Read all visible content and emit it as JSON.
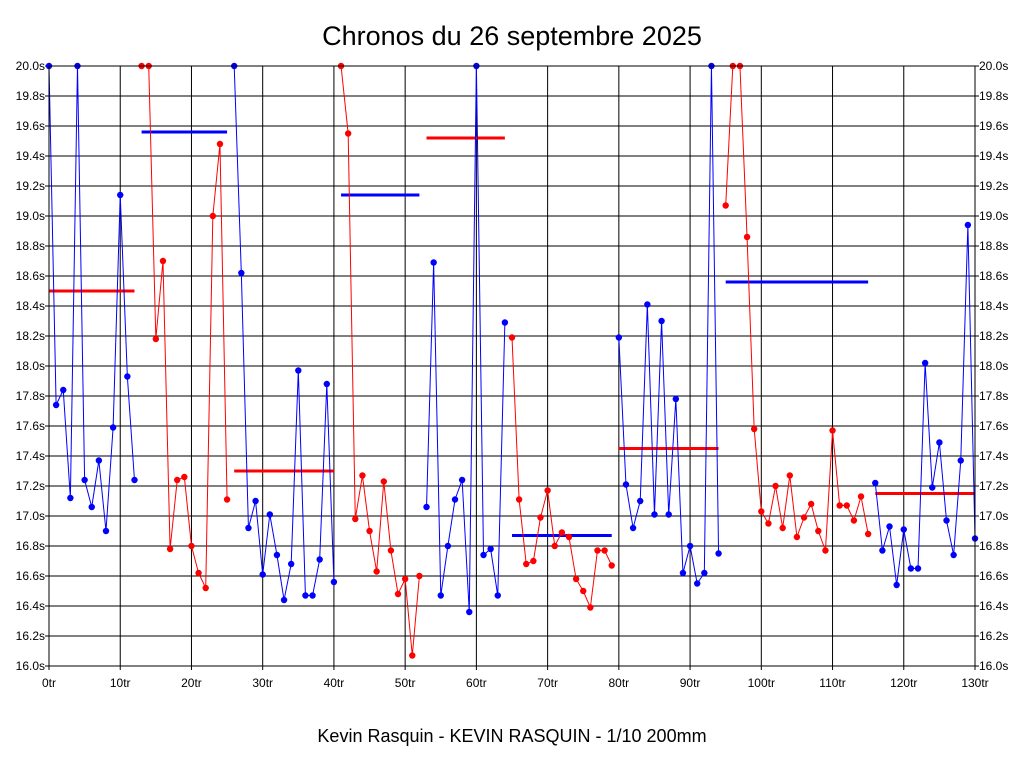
{
  "chart_data": {
    "type": "line",
    "title": "Chronos du 26 septembre 2025",
    "subtitle": "Kevin Rasquin - KEVIN RASQUIN - 1/10 200mm",
    "xlabel": "",
    "ylabel": "",
    "xlim": [
      0,
      130
    ],
    "ylim": [
      16.0,
      20.0
    ],
    "grid": true,
    "x_ticks": [
      {
        "value": 0,
        "label": "0tr"
      },
      {
        "value": 10,
        "label": "10tr"
      },
      {
        "value": 20,
        "label": "20tr"
      },
      {
        "value": 30,
        "label": "30tr"
      },
      {
        "value": 40,
        "label": "40tr"
      },
      {
        "value": 50,
        "label": "50tr"
      },
      {
        "value": 60,
        "label": "60tr"
      },
      {
        "value": 70,
        "label": "70tr"
      },
      {
        "value": 80,
        "label": "80tr"
      },
      {
        "value": 90,
        "label": "90tr"
      },
      {
        "value": 100,
        "label": "100tr"
      },
      {
        "value": 110,
        "label": "110tr"
      },
      {
        "value": 120,
        "label": "120tr"
      },
      {
        "value": 130,
        "label": "130tr"
      }
    ],
    "y_ticks": [
      {
        "value": 16.0,
        "label": "16.0s"
      },
      {
        "value": 16.2,
        "label": "16.2s"
      },
      {
        "value": 16.4,
        "label": "16.4s"
      },
      {
        "value": 16.6,
        "label": "16.6s"
      },
      {
        "value": 16.8,
        "label": "16.8s"
      },
      {
        "value": 17.0,
        "label": "17.0s"
      },
      {
        "value": 17.2,
        "label": "17.2s"
      },
      {
        "value": 17.4,
        "label": "17.4s"
      },
      {
        "value": 17.6,
        "label": "17.6s"
      },
      {
        "value": 17.8,
        "label": "17.8s"
      },
      {
        "value": 18.0,
        "label": "18.0s"
      },
      {
        "value": 18.2,
        "label": "18.2s"
      },
      {
        "value": 18.4,
        "label": "18.4s"
      },
      {
        "value": 18.6,
        "label": "18.6s"
      },
      {
        "value": 18.8,
        "label": "18.8s"
      },
      {
        "value": 19.0,
        "label": "19.0s"
      },
      {
        "value": 19.2,
        "label": "19.2s"
      },
      {
        "value": 19.4,
        "label": "19.4s"
      },
      {
        "value": 19.6,
        "label": "19.6s"
      },
      {
        "value": 19.8,
        "label": "19.8s"
      },
      {
        "value": 20.0,
        "label": "20.0s"
      }
    ],
    "colors": {
      "blue": "#0000ff",
      "red": "#ff0000",
      "grid": "#000000"
    },
    "series": [
      {
        "name": "run-1",
        "color": "blue",
        "x": [
          0,
          1,
          2,
          3,
          4,
          5,
          6,
          7,
          8,
          9,
          10,
          11,
          12
        ],
        "values": [
          20.0,
          17.74,
          17.84,
          17.12,
          20.0,
          17.24,
          17.06,
          17.37,
          16.9,
          17.59,
          19.14,
          17.93,
          17.24
        ]
      },
      {
        "name": "run-2",
        "color": "red",
        "x": [
          13,
          14,
          15,
          16,
          17,
          18,
          19,
          20,
          21,
          22,
          23,
          24,
          25
        ],
        "values": [
          20.0,
          20.0,
          18.18,
          18.7,
          16.78,
          17.24,
          17.26,
          16.8,
          16.62,
          16.52,
          19.0,
          19.48,
          17.11
        ]
      },
      {
        "name": "run-3",
        "color": "blue",
        "x": [
          26,
          27,
          28,
          29,
          30,
          31,
          32,
          33,
          34,
          35,
          36,
          37,
          38,
          39,
          40
        ],
        "values": [
          20.0,
          18.62,
          16.92,
          17.1,
          16.61,
          17.01,
          16.74,
          16.44,
          16.68,
          17.97,
          16.47,
          16.47,
          16.71,
          17.88,
          16.56
        ]
      },
      {
        "name": "run-4",
        "color": "red",
        "x": [
          41,
          42,
          43,
          44,
          45,
          46,
          47,
          48,
          49,
          50,
          51,
          52
        ],
        "values": [
          20.0,
          19.55,
          16.98,
          17.27,
          16.9,
          16.63,
          17.23,
          16.77,
          16.48,
          16.58,
          16.07,
          16.6
        ]
      },
      {
        "name": "run-5",
        "color": "blue",
        "x": [
          53,
          54,
          55,
          56,
          57,
          58,
          59,
          60,
          61,
          62,
          63,
          64
        ],
        "values": [
          17.06,
          18.69,
          16.47,
          16.8,
          17.11,
          17.24,
          16.36,
          20.0,
          16.74,
          16.78,
          16.47,
          18.29
        ]
      },
      {
        "name": "run-6",
        "color": "red",
        "x": [
          65,
          66,
          67,
          68,
          69,
          70,
          71,
          72,
          73,
          74,
          75,
          76,
          77,
          78,
          79
        ],
        "values": [
          18.19,
          17.11,
          16.68,
          16.7,
          16.99,
          17.17,
          16.8,
          16.89,
          16.86,
          16.58,
          16.5,
          16.39,
          16.77,
          16.77,
          16.67
        ]
      },
      {
        "name": "run-7",
        "color": "blue",
        "x": [
          80,
          81,
          82,
          83,
          84,
          85,
          86,
          87,
          88,
          89,
          90,
          91,
          92,
          93,
          94
        ],
        "values": [
          18.19,
          17.21,
          16.92,
          17.1,
          18.41,
          17.01,
          18.3,
          17.01,
          17.78,
          16.62,
          16.8,
          16.55,
          16.62,
          20.0,
          16.75
        ]
      },
      {
        "name": "run-8",
        "color": "red",
        "x": [
          95,
          96,
          97,
          98,
          99,
          100,
          101,
          102,
          103,
          104,
          105,
          106,
          107,
          108,
          109,
          110,
          111,
          112,
          113,
          114,
          115
        ],
        "values": [
          19.07,
          20.0,
          20.0,
          18.86,
          17.58,
          17.03,
          16.95,
          17.2,
          16.92,
          17.27,
          16.86,
          16.99,
          17.08,
          16.9,
          16.77,
          17.57,
          17.07,
          17.07,
          16.97,
          17.13,
          16.88
        ]
      },
      {
        "name": "run-9",
        "color": "blue",
        "x": [
          116,
          117,
          118,
          119,
          120,
          121,
          122,
          123,
          124,
          125,
          126,
          127,
          128,
          129,
          130
        ],
        "values": [
          17.22,
          16.77,
          16.93,
          16.54,
          16.91,
          16.65,
          16.65,
          18.02,
          17.19,
          17.49,
          16.97,
          16.74,
          17.37,
          18.94,
          16.85
        ]
      }
    ],
    "averages": [
      {
        "name": "avg-1",
        "color": "red",
        "x_start": 0,
        "x_end": 12,
        "value": 18.5
      },
      {
        "name": "avg-2",
        "color": "blue",
        "x_start": 13,
        "x_end": 25,
        "value": 19.56
      },
      {
        "name": "avg-3",
        "color": "red",
        "x_start": 26,
        "x_end": 40,
        "value": 17.3
      },
      {
        "name": "avg-4",
        "color": "blue",
        "x_start": 41,
        "x_end": 52,
        "value": 19.14
      },
      {
        "name": "avg-5",
        "color": "red",
        "x_start": 53,
        "x_end": 64,
        "value": 19.52
      },
      {
        "name": "avg-6",
        "color": "blue",
        "x_start": 65,
        "x_end": 79,
        "value": 16.87
      },
      {
        "name": "avg-7",
        "color": "red",
        "x_start": 80,
        "x_end": 94,
        "value": 17.45
      },
      {
        "name": "avg-8",
        "color": "blue",
        "x_start": 95,
        "x_end": 115,
        "value": 18.56
      },
      {
        "name": "avg-9",
        "color": "red",
        "x_start": 116,
        "x_end": 130,
        "value": 17.15
      }
    ]
  }
}
